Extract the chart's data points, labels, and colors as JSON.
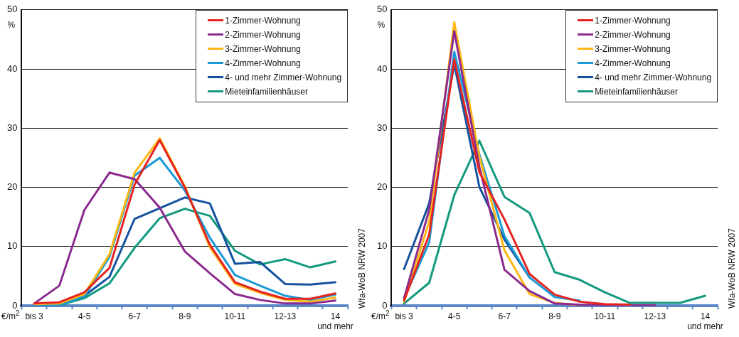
{
  "chart_data": [
    {
      "type": "line",
      "xlabel": "€/m$^{2}$",
      "ylabel": "%",
      "categories": [
        "bis 3",
        null,
        "4-5",
        null,
        "6-7",
        null,
        "8-9",
        null,
        "10-11",
        null,
        "12-13",
        null,
        "14 und mehr"
      ],
      "series": [
        {
          "name": "1-Zimmer-Wohnung",
          "color": "#e52421",
          "values": [
            0.4,
            0.6,
            2.3,
            6.4,
            20.5,
            28.0,
            20.0,
            10.3,
            4.0,
            2.4,
            1.2,
            1.2,
            2.1
          ]
        },
        {
          "name": "2-Zimmer-Wohnung",
          "color": "#8b2a8e",
          "values": [
            0.4,
            3.4,
            16.2,
            22.5,
            21.4,
            16.6,
            9.2,
            5.5,
            2.0,
            1.0,
            0.4,
            0.4,
            0.9
          ]
        },
        {
          "name": "3-Zimmer-Wohnung",
          "color": "#fdb913",
          "values": [
            0.3,
            0.4,
            2.0,
            8.7,
            22.5,
            28.3,
            20.2,
            9.9,
            3.7,
            2.2,
            1.0,
            0.7,
            1.4
          ]
        },
        {
          "name": "4-Zimmer-Wohnung",
          "color": "#1a9ad6",
          "values": [
            0.2,
            0.2,
            1.6,
            8.3,
            22.0,
            25.0,
            19.5,
            11.5,
            5.2,
            3.4,
            1.7,
            1.0,
            1.9
          ]
        },
        {
          "name": "4- und mehr Zimmer-Wohnung",
          "color": "#1452a0",
          "values": [
            0.2,
            0.3,
            1.7,
            4.9,
            14.7,
            16.5,
            18.3,
            17.3,
            7.1,
            7.4,
            3.7,
            3.6,
            4.0
          ]
        },
        {
          "name": "Mieteinfamilienhäuser",
          "color": "#12997f",
          "values": [
            0.2,
            0.1,
            1.3,
            3.8,
            9.8,
            14.8,
            16.4,
            15.2,
            9.3,
            7.0,
            7.9,
            6.5,
            7.5
          ]
        }
      ],
      "ylim": [
        0,
        50
      ],
      "yticks": [
        0,
        10,
        20,
        30,
        40,
        50
      ],
      "grid": "y",
      "legend": "top right",
      "annotations": [
        "Wfa-WoB NRW 2007"
      ]
    },
    {
      "type": "line",
      "xlabel": "€/m$^{2}$",
      "ylabel": "%",
      "categories": [
        "bis 3",
        null,
        "4-5",
        null,
        "6-7",
        null,
        "8-9",
        null,
        "10-11",
        null,
        "12-13",
        null,
        "14 und mehr"
      ],
      "series": [
        {
          "name": "1-Zimmer-Wohnung",
          "color": "#e52421",
          "values": [
            0.9,
            12.0,
            41.6,
            22.6,
            14.6,
            5.4,
            1.9,
            0.7,
            0.3,
            0.2,
            null,
            null,
            null
          ]
        },
        {
          "name": "2-Zimmer-Wohnung",
          "color": "#8b2a8e",
          "values": [
            1.3,
            16.2,
            46.4,
            23.5,
            6.1,
            2.5,
            0.4,
            0.2,
            0.1,
            0.1,
            0.1,
            null,
            null
          ]
        },
        {
          "name": "3-Zimmer-Wohnung",
          "color": "#fdb913",
          "values": [
            0.7,
            14.2,
            47.9,
            25.2,
            9.4,
            2.0,
            0.5,
            0.1,
            null,
            null,
            null,
            null,
            null
          ]
        },
        {
          "name": "4-Zimmer-Wohnung",
          "color": "#1a9ad6",
          "values": [
            1.3,
            10.7,
            42.9,
            25.6,
            11.8,
            4.8,
            1.5,
            0.9,
            null,
            null,
            null,
            null,
            null
          ]
        },
        {
          "name": "4- und mehr Zimmer-Wohnung",
          "color": "#1452a0",
          "values": [
            6.2,
            17.3,
            40.8,
            20.1,
            11.2,
            4.8,
            null,
            null,
            null,
            null,
            null,
            null,
            null
          ]
        },
        {
          "name": "Mieteinfamilienhäuser",
          "color": "#12997f",
          "values": [
            0.4,
            3.9,
            18.7,
            27.9,
            18.4,
            15.7,
            5.7,
            4.4,
            2.3,
            0.5,
            0.5,
            0.5,
            1.7
          ]
        }
      ],
      "ylim": [
        0,
        50
      ],
      "yticks": [
        0,
        10,
        20,
        30,
        40,
        50
      ],
      "grid": "y",
      "legend": "top right",
      "annotations": [
        "Wfa-WoB NRW 2007"
      ]
    }
  ]
}
